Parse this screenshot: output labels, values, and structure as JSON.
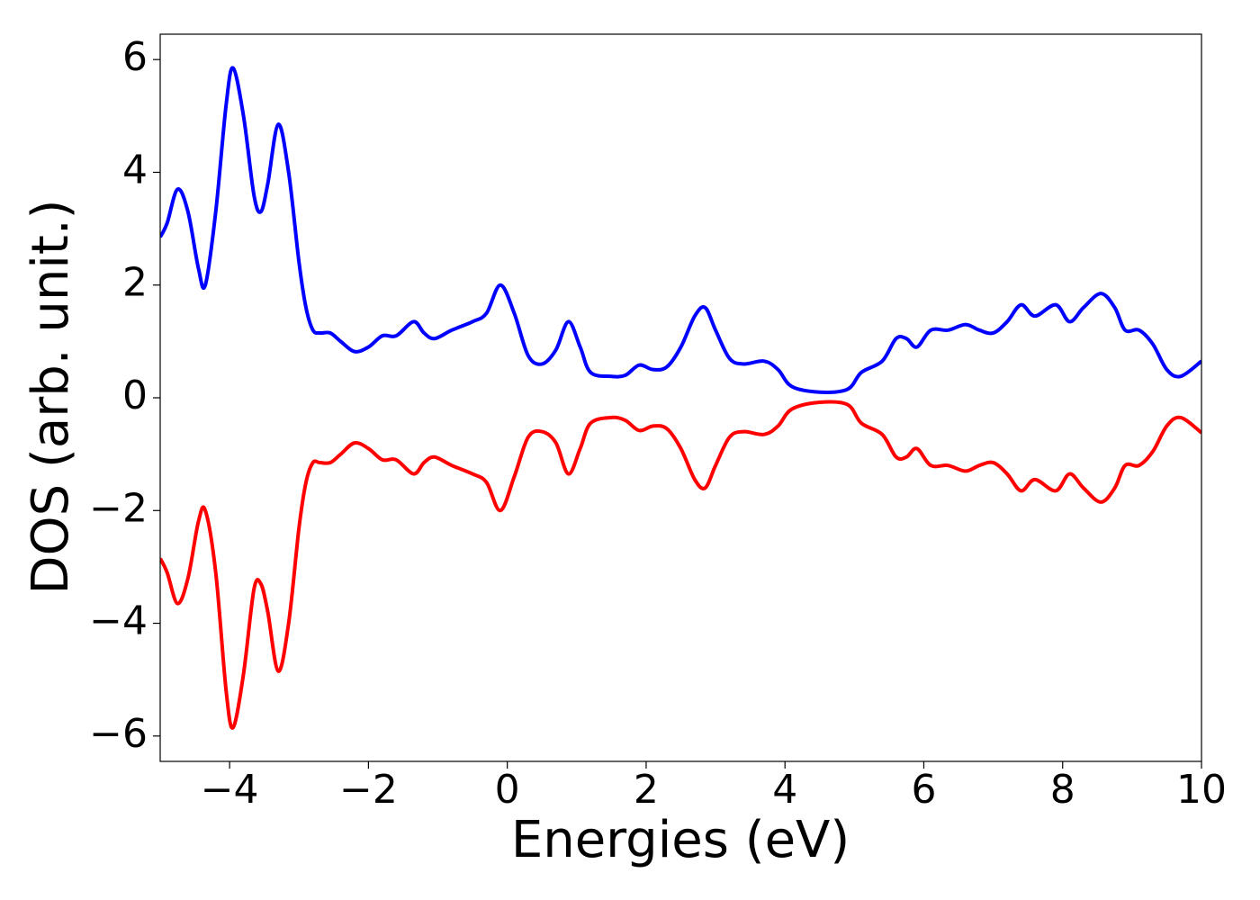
{
  "chart_data": {
    "type": "line",
    "xlabel": "Energies (eV)",
    "ylabel": "DOS (arb. unit.)",
    "x": [
      -5,
      -4.9,
      -4.75,
      -4.6,
      -4.45,
      -4.35,
      -4.2,
      -4.05,
      -3.95,
      -3.8,
      -3.65,
      -3.55,
      -3.45,
      -3.3,
      -3.15,
      -3.0,
      -2.9,
      -2.8,
      -2.7,
      -2.55,
      -2.4,
      -2.2,
      -2.0,
      -1.8,
      -1.6,
      -1.35,
      -1.2,
      -1.05,
      -0.8,
      -0.5,
      -0.3,
      -0.1,
      0.1,
      0.3,
      0.5,
      0.7,
      0.88,
      1.05,
      1.2,
      1.5,
      1.7,
      1.9,
      2.1,
      2.3,
      2.5,
      2.7,
      2.85,
      3.0,
      3.2,
      3.4,
      3.7,
      3.9,
      4.1,
      4.5,
      4.9,
      5.1,
      5.4,
      5.6,
      5.75,
      5.9,
      6.1,
      6.35,
      6.6,
      6.8,
      7.0,
      7.2,
      7.4,
      7.6,
      7.9,
      8.1,
      8.3,
      8.55,
      8.75,
      8.9,
      9.1,
      9.3,
      9.5,
      9.7,
      10
    ],
    "series": [
      {
        "color": "#0000ff",
        "values": [
          2.85,
          3.1,
          3.7,
          3.3,
          2.3,
          2.0,
          3.3,
          5.2,
          5.85,
          5.0,
          3.6,
          3.3,
          3.8,
          4.85,
          4.0,
          2.4,
          1.6,
          1.2,
          1.15,
          1.15,
          1.0,
          0.82,
          0.9,
          1.1,
          1.1,
          1.35,
          1.15,
          1.05,
          1.2,
          1.35,
          1.5,
          2.0,
          1.5,
          0.75,
          0.6,
          0.85,
          1.35,
          0.9,
          0.45,
          0.38,
          0.4,
          0.58,
          0.5,
          0.55,
          0.9,
          1.45,
          1.6,
          1.2,
          0.7,
          0.6,
          0.65,
          0.5,
          0.2,
          0.1,
          0.15,
          0.45,
          0.65,
          1.05,
          1.05,
          0.9,
          1.2,
          1.2,
          1.3,
          1.2,
          1.15,
          1.35,
          1.65,
          1.45,
          1.65,
          1.35,
          1.6,
          1.85,
          1.6,
          1.2,
          1.2,
          0.95,
          0.5,
          0.38,
          0.65
        ]
      },
      {
        "color": "#ff0000",
        "values": [
          -2.85,
          -3.1,
          -3.65,
          -3.2,
          -2.2,
          -2.0,
          -3.1,
          -5.2,
          -5.85,
          -4.9,
          -3.4,
          -3.3,
          -3.8,
          -4.85,
          -4.0,
          -2.3,
          -1.5,
          -1.15,
          -1.15,
          -1.15,
          -1.0,
          -0.8,
          -0.9,
          -1.1,
          -1.1,
          -1.35,
          -1.15,
          -1.05,
          -1.2,
          -1.35,
          -1.5,
          -2.0,
          -1.4,
          -0.7,
          -0.6,
          -0.8,
          -1.35,
          -0.9,
          -0.45,
          -0.35,
          -0.4,
          -0.58,
          -0.5,
          -0.55,
          -0.9,
          -1.45,
          -1.6,
          -1.2,
          -0.7,
          -0.6,
          -0.65,
          -0.5,
          -0.2,
          -0.08,
          -0.12,
          -0.45,
          -0.65,
          -1.05,
          -1.05,
          -0.9,
          -1.2,
          -1.2,
          -1.3,
          -1.2,
          -1.15,
          -1.35,
          -1.65,
          -1.45,
          -1.65,
          -1.35,
          -1.6,
          -1.85,
          -1.6,
          -1.2,
          -1.2,
          -0.95,
          -0.5,
          -0.35,
          -0.62
        ]
      }
    ],
    "xlim": [
      -5,
      10
    ],
    "xticks": [
      {
        "value": -4,
        "label": "−4"
      },
      {
        "value": -2,
        "label": "−2"
      },
      0,
      2,
      4,
      6,
      8,
      10
    ],
    "ylim": [
      -6.45,
      6.45
    ],
    "yticks": [
      {
        "value": -6,
        "label": "−6"
      },
      {
        "value": -4,
        "label": "−4"
      },
      {
        "value": -2,
        "label": "−2"
      },
      0,
      2,
      4,
      6
    ],
    "grid": false
  }
}
